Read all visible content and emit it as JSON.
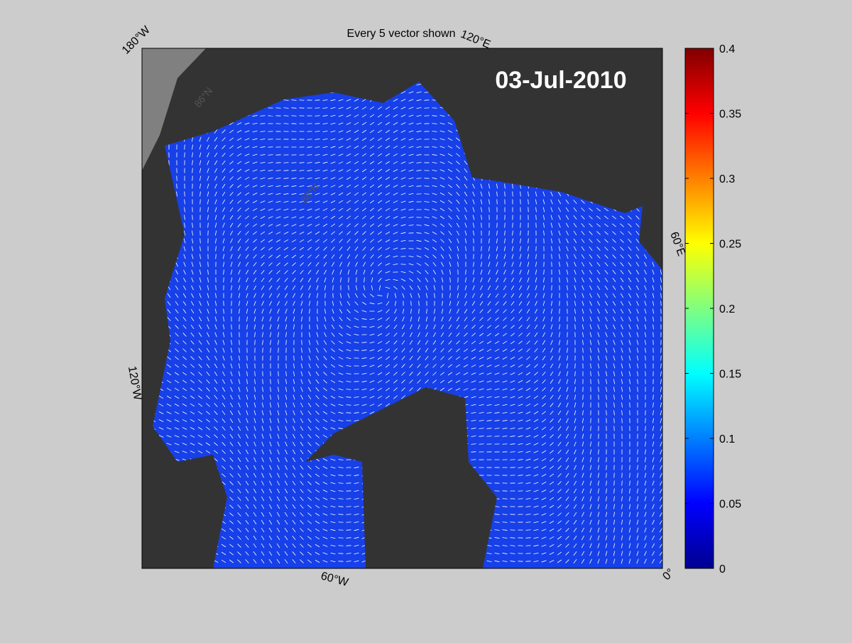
{
  "title": "Every 5 vector shown",
  "date_label": "03-Jul-2010",
  "longitude_labels": [
    "180°W",
    "120°E",
    "60°E",
    "0°",
    "60°W",
    "120°W"
  ],
  "latitude_labels": [
    "86°N",
    "88°N"
  ],
  "colorbar": {
    "lim": [
      0,
      0.4
    ],
    "ticks": [
      0,
      0.05,
      0.1,
      0.15,
      0.2,
      0.25,
      0.3,
      0.35,
      0.4
    ]
  }
}
